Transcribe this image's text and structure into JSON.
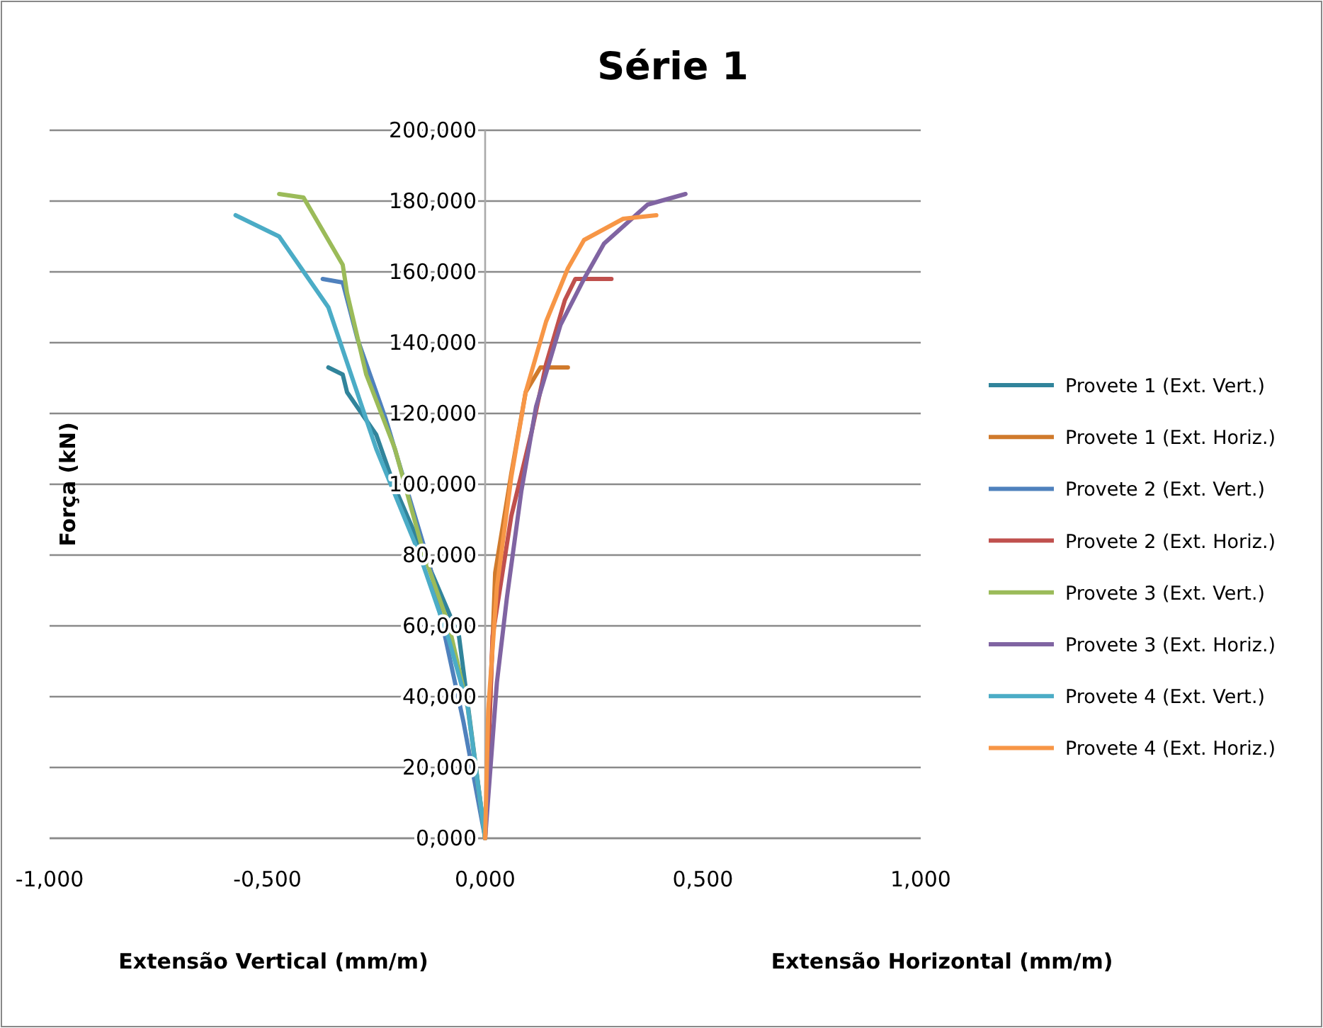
{
  "chart_data": {
    "type": "line",
    "title": "Série 1",
    "xlabel": "Extensão Vertical (mm/m)",
    "ylabel": "Força (kN)",
    "annotations": [
      "Extensão Horizontal (mm/m)"
    ],
    "xlim": [
      -1,
      1
    ],
    "xticks": [
      {
        "value": -1,
        "label": "-1,000"
      },
      {
        "value": -0.5,
        "label": "-0,500"
      },
      {
        "value": 0,
        "label": "0,000"
      },
      {
        "value": 0.5,
        "label": "0,500"
      },
      {
        "value": 1,
        "label": "1,000"
      }
    ],
    "ylim": [
      0,
      200
    ],
    "yticks": [
      {
        "value": 0,
        "label": "0,000"
      },
      {
        "value": 20,
        "label": "20,000"
      },
      {
        "value": 40,
        "label": "40,000"
      },
      {
        "value": 60,
        "label": "60,000"
      },
      {
        "value": 80,
        "label": "80,000"
      },
      {
        "value": 100,
        "label": "100,000"
      },
      {
        "value": 120,
        "label": "120,000"
      },
      {
        "value": 140,
        "label": "140,000"
      },
      {
        "value": 160,
        "label": "160,000"
      },
      {
        "value": 180,
        "label": "180,000"
      },
      {
        "value": 200,
        "label": "200,000"
      }
    ],
    "grid": "y",
    "legend": "right",
    "marker": "none",
    "line_style": "solid",
    "series": [
      {
        "name": "Provete 1 (Ext. Vert.)",
        "color": "#31849b",
        "x": [
          0,
          -0.06,
          -0.14,
          -0.207,
          -0.25,
          -0.317,
          -0.327,
          -0.36
        ],
        "values": [
          0,
          57,
          80,
          99,
          114,
          126,
          131,
          133
        ]
      },
      {
        "name": "Provete 1 (Ext. Horiz.)",
        "color": "#d07a2c",
        "x": [
          0,
          0.023,
          0.06,
          0.093,
          0.127,
          0.19
        ],
        "values": [
          0,
          75,
          103,
          126,
          133,
          133
        ]
      },
      {
        "name": "Provete 2 (Ext. Vert.)",
        "color": "#4f81bd",
        "x": [
          0,
          -0.05,
          -0.127,
          -0.227,
          -0.293,
          -0.327,
          -0.373
        ],
        "values": [
          0,
          33,
          77,
          118,
          141,
          157,
          158
        ]
      },
      {
        "name": "Provete 2 (Ext. Horiz.)",
        "color": "#c0504d",
        "x": [
          0,
          0.017,
          0.06,
          0.107,
          0.14,
          0.183,
          0.207,
          0.29
        ],
        "values": [
          0,
          57,
          91,
          115,
          134,
          152,
          158,
          158
        ]
      },
      {
        "name": "Provete 3 (Ext. Vert.)",
        "color": "#9bbb59",
        "x": [
          0,
          -0.04,
          -0.083,
          -0.14,
          -0.207,
          -0.273,
          -0.317,
          -0.327,
          -0.417,
          -0.473
        ],
        "values": [
          0,
          37,
          60,
          80,
          110,
          131,
          154,
          162,
          181,
          182
        ]
      },
      {
        "name": "Provete 3 (Ext. Horiz.)",
        "color": "#8064a2",
        "x": [
          0,
          0.027,
          0.05,
          0.083,
          0.117,
          0.173,
          0.227,
          0.273,
          0.373,
          0.46
        ],
        "values": [
          0,
          44,
          68,
          98,
          122,
          145,
          158,
          168,
          179,
          182
        ]
      },
      {
        "name": "Provete 4 (Ext. Vert.)",
        "color": "#4bacc6",
        "x": [
          0,
          -0.04,
          -0.083,
          -0.15,
          -0.25,
          -0.36,
          -0.473,
          -0.573
        ],
        "values": [
          0,
          37,
          56,
          80,
          110,
          150,
          170,
          176
        ]
      },
      {
        "name": "Provete 4 (Ext. Horiz.)",
        "color": "#f79646",
        "x": [
          0,
          0.007,
          0.027,
          0.06,
          0.093,
          0.14,
          0.19,
          0.227,
          0.317,
          0.393
        ],
        "values": [
          0,
          36,
          71,
          102,
          126,
          146,
          161,
          169,
          175,
          176
        ]
      }
    ]
  }
}
